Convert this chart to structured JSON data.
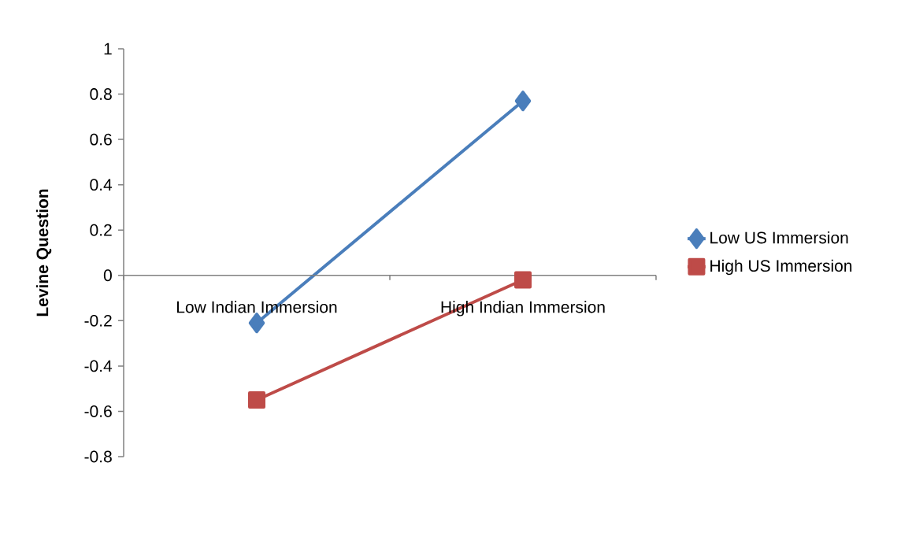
{
  "chart_data": {
    "type": "line",
    "ylabel": "Levine Question",
    "categories": [
      "Low Indian Immersion",
      "High Indian Immersion"
    ],
    "series": [
      {
        "name": "Low US Immersion",
        "color": "#4a7ebb",
        "values": [
          -0.21,
          0.77
        ],
        "marker": "diamond"
      },
      {
        "name": "High US Immersion",
        "color": "#be4b48",
        "values": [
          -0.55,
          -0.02
        ],
        "marker": "square"
      }
    ],
    "ylim": [
      -0.8,
      1
    ],
    "yticks": [
      -0.8,
      -0.6,
      -0.4,
      -0.2,
      0,
      0.2,
      0.4,
      0.6,
      0.8,
      1
    ],
    "grid": false,
    "legend": "right",
    "line_style": "solid"
  }
}
